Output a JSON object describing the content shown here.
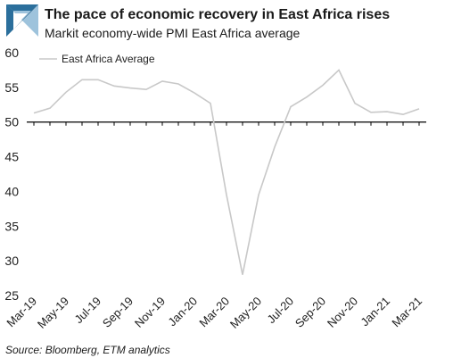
{
  "header": {
    "title": "The pace of economic recovery in East Africa rises",
    "subtitle": "Markit economy-wide PMI East Africa average"
  },
  "footer": {
    "source": "Source: Bloomberg, ETM analytics"
  },
  "colors": {
    "logo_primary": "#2b6f9c",
    "logo_secondary": "#9ec3dc",
    "series_line": "#c8c8c8",
    "axis": "#000000"
  },
  "chart_data": {
    "type": "line",
    "title": "The pace of economic recovery in East Africa rises",
    "subtitle": "Markit economy-wide PMI East Africa average",
    "xlabel": "",
    "ylabel": "",
    "ylim": [
      25,
      60
    ],
    "yticks": [
      25,
      30,
      35,
      40,
      45,
      50,
      55,
      60
    ],
    "baseline": 50,
    "grid": false,
    "legend": "top-left",
    "x": [
      "Mar-19",
      "Apr-19",
      "May-19",
      "Jun-19",
      "Jul-19",
      "Aug-19",
      "Sep-19",
      "Oct-19",
      "Nov-19",
      "Dec-19",
      "Jan-20",
      "Feb-20",
      "Mar-20",
      "Apr-20",
      "May-20",
      "Jun-20",
      "Jul-20",
      "Aug-20",
      "Sep-20",
      "Oct-20",
      "Nov-20",
      "Dec-20",
      "Jan-21",
      "Feb-21",
      "Mar-21"
    ],
    "xtick_labels": [
      "Mar-19",
      "May-19",
      "Jul-19",
      "Sep-19",
      "Nov-19",
      "Jan-20",
      "Mar-20",
      "May-20",
      "Jul-20",
      "Sep-20",
      "Nov-20",
      "Jan-21",
      "Mar-21"
    ],
    "series": [
      {
        "name": "East Africa Average",
        "color": "#c8c8c8",
        "values": [
          51.3,
          52.0,
          54.3,
          56.1,
          56.1,
          55.2,
          54.9,
          54.7,
          55.9,
          55.5,
          54.2,
          52.7,
          39.5,
          28.0,
          39.5,
          46.4,
          52.2,
          53.6,
          55.3,
          57.5,
          52.7,
          51.4,
          51.5,
          51.1,
          51.9
        ]
      }
    ]
  }
}
